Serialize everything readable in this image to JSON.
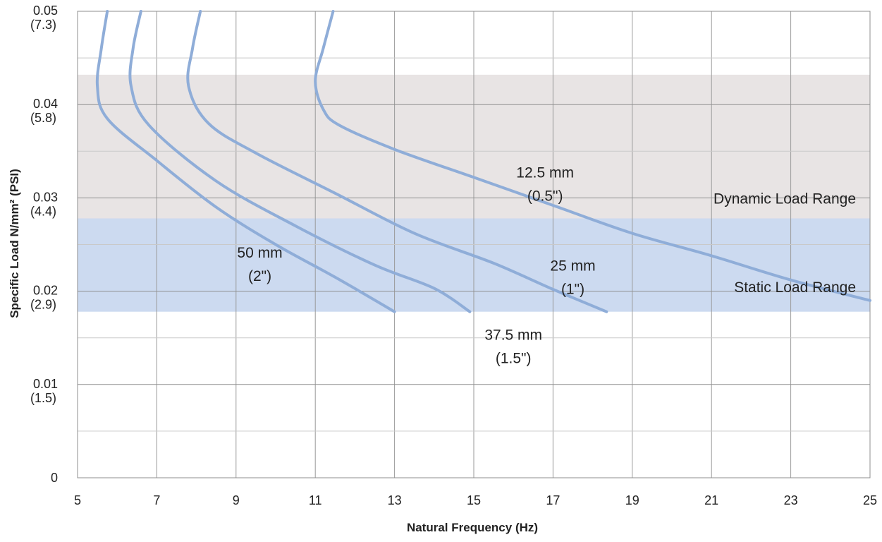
{
  "chart_data": {
    "type": "line",
    "title": "",
    "xlabel": "Natural Frequency (Hz)",
    "ylabel": "Specific Load N/mm² (PSI)",
    "xlim": [
      5,
      25
    ],
    "ylim": [
      0,
      0.05
    ],
    "grid": true,
    "legend": "none",
    "x_ticks": [
      "5",
      "7",
      "9",
      "11",
      "13",
      "15",
      "17",
      "19",
      "21",
      "23",
      "25"
    ],
    "y_ticks": [
      {
        "value": 0,
        "label": "0",
        "psi": ""
      },
      {
        "value": 0.01,
        "label": "0.01",
        "psi": "(1.5)"
      },
      {
        "value": 0.02,
        "label": "0.02",
        "psi": "(2.9)"
      },
      {
        "value": 0.03,
        "label": "0.03",
        "psi": "(4.4)"
      },
      {
        "value": 0.04,
        "label": "0.04",
        "psi": "(5.8)"
      },
      {
        "value": 0.05,
        "label": "0.05",
        "psi": "(7.3)"
      }
    ],
    "bands": [
      {
        "label": "Dynamic Load Range",
        "from": 0.0178,
        "to": 0.0432,
        "color": "#e8e4e4"
      },
      {
        "label": "Static Load Range",
        "from": 0.0178,
        "to": 0.0278,
        "color": "#ccdaf0"
      }
    ],
    "series": [
      {
        "name": "50 mm (2\")",
        "label_line1": "50 mm",
        "label_line2": "(2\")",
        "label_at": [
          9.6,
          0.0236
        ],
        "points": [
          [
            5.75,
            0.05
          ],
          [
            5.6,
            0.046
          ],
          [
            5.5,
            0.042
          ],
          [
            5.75,
            0.0385
          ],
          [
            7,
            0.034
          ],
          [
            8.5,
            0.029
          ],
          [
            10,
            0.025
          ],
          [
            11.5,
            0.0215
          ],
          [
            13,
            0.0178
          ]
        ]
      },
      {
        "name": "37.5 mm (1.5\")",
        "label_line1": "37.5 mm",
        "label_line2": "(1.5\")",
        "label_at": [
          16.0,
          0.0148
        ],
        "points": [
          [
            6.6,
            0.05
          ],
          [
            6.4,
            0.046
          ],
          [
            6.35,
            0.042
          ],
          [
            6.8,
            0.0378
          ],
          [
            8.5,
            0.0318
          ],
          [
            10.5,
            0.027
          ],
          [
            12.5,
            0.0228
          ],
          [
            14,
            0.0203
          ],
          [
            14.9,
            0.0178
          ]
        ]
      },
      {
        "name": "25 mm (1\")",
        "label_line1": "25 mm",
        "label_line2": "(1\")",
        "label_at": [
          17.5,
          0.0222
        ],
        "points": [
          [
            8.1,
            0.05
          ],
          [
            7.9,
            0.046
          ],
          [
            7.8,
            0.042
          ],
          [
            8.3,
            0.038
          ],
          [
            9.5,
            0.0348
          ],
          [
            11.5,
            0.0305
          ],
          [
            13.5,
            0.0262
          ],
          [
            15.5,
            0.023
          ],
          [
            17,
            0.0202
          ],
          [
            18.35,
            0.0178
          ]
        ]
      },
      {
        "name": "12.5 mm (0.5\")",
        "label_line1": "12.5 mm",
        "label_line2": "(0.5\")",
        "label_at": [
          16.8,
          0.0322
        ],
        "points": [
          [
            11.45,
            0.05
          ],
          [
            11.2,
            0.046
          ],
          [
            11.0,
            0.0425
          ],
          [
            11.2,
            0.0395
          ],
          [
            11.6,
            0.0378
          ],
          [
            13,
            0.0352
          ],
          [
            15,
            0.0322
          ],
          [
            17,
            0.0292
          ],
          [
            19,
            0.0262
          ],
          [
            21,
            0.0238
          ],
          [
            23,
            0.0212
          ],
          [
            25,
            0.019
          ]
        ]
      }
    ]
  }
}
